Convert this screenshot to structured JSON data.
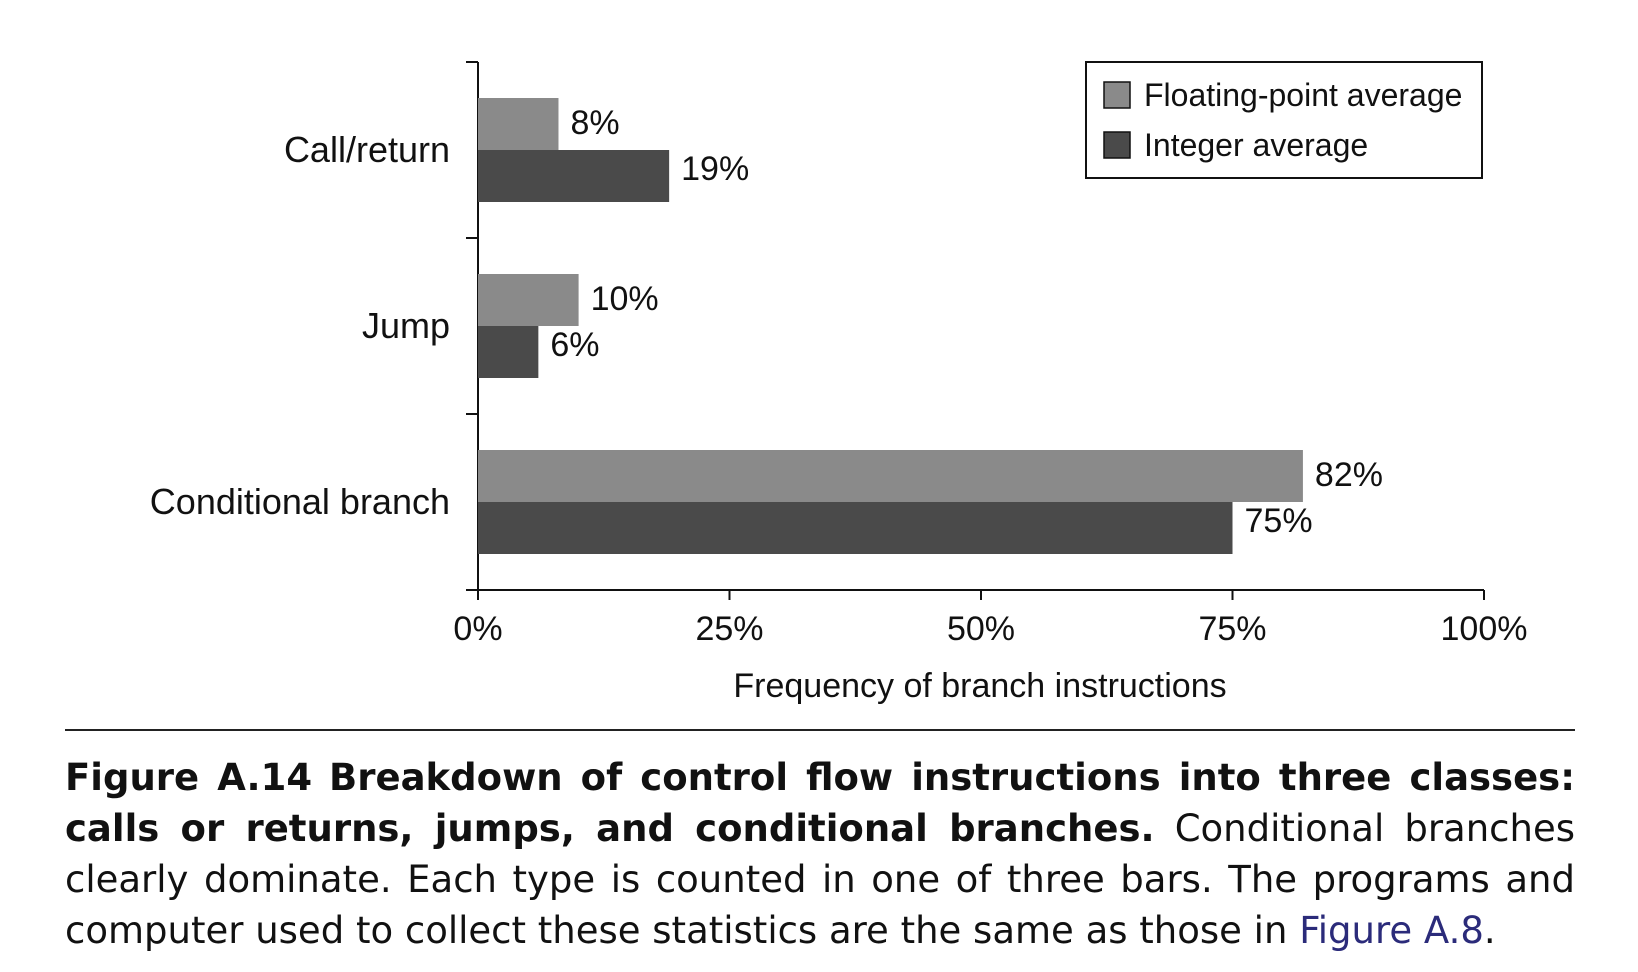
{
  "chart_data": {
    "type": "bar",
    "orientation": "horizontal",
    "categories": [
      "Call/return",
      "Jump",
      "Conditional branch"
    ],
    "series": [
      {
        "name": "Floating-point average",
        "values": [
          8,
          10,
          82
        ],
        "labels": [
          "8%",
          "10%",
          "82%"
        ],
        "color": "#8a8a8a"
      },
      {
        "name": "Integer average",
        "values": [
          19,
          6,
          75
        ],
        "labels": [
          "19%",
          "6%",
          "75%"
        ],
        "color": "#4a4a4a"
      }
    ],
    "xlabel": "Frequency of branch instructions",
    "xlim": [
      0,
      100
    ],
    "xticks": [
      0,
      25,
      50,
      75,
      100
    ],
    "xtick_labels": [
      "0%",
      "25%",
      "50%",
      "75%",
      "100%"
    ],
    "legend_position": "top-right",
    "grid": false
  },
  "caption": {
    "figure_number": "Figure A.14",
    "bold_title": "Breakdown of control flow instructions into three classes: calls or returns, jumps, and conditional branches.",
    "body": "Conditional branches clearly dominate. Each type is counted in one of three bars. The programs and computer used to collect these statistics are the same as those in",
    "reference": "Figure A.8",
    "end": "."
  }
}
